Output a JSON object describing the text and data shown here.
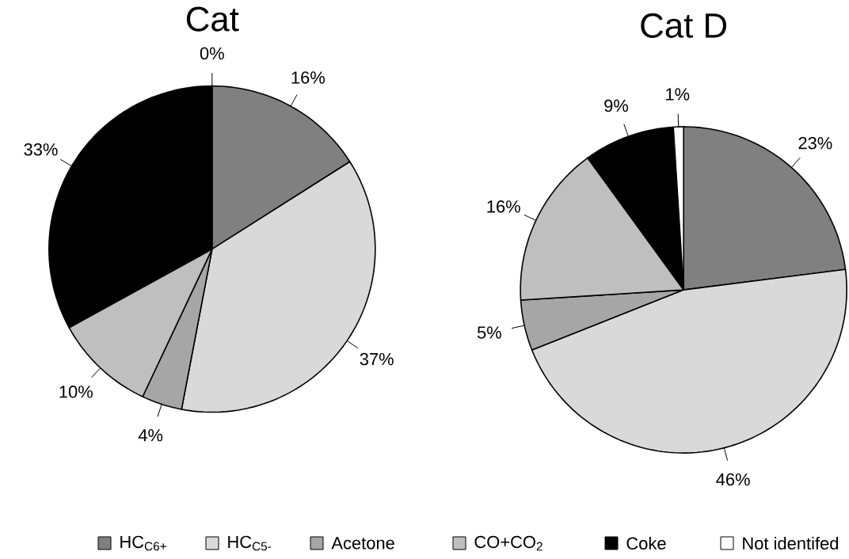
{
  "chart_data": [
    {
      "type": "pie",
      "title": "Cat",
      "categories": [
        "HC$_{C6+}$",
        "HC$_{C5-}$",
        "Acetone",
        "CO+CO$_{2}$",
        "Coke",
        "Not identifed"
      ],
      "values": [
        16,
        37,
        4,
        10,
        33,
        0
      ],
      "value_labels": [
        "16%",
        "37%",
        "4%",
        "10%",
        "33%",
        "0%"
      ],
      "colors": [
        "#808080",
        "#d9d9d9",
        "#a6a6a6",
        "#bfbfbf",
        "#000000",
        "#ffffff"
      ],
      "legend": "bottom"
    },
    {
      "type": "pie",
      "title": "Cat D",
      "categories": [
        null,
        null,
        null,
        null,
        null,
        null
      ],
      "values": [
        23,
        46,
        5,
        16,
        9,
        1
      ],
      "value_labels": [
        "23%",
        "46%",
        "5%",
        "16%",
        "9%",
        "1%"
      ],
      "colors": [
        "#808080",
        "#d9d9d9",
        "#a6a6a6",
        "#bfbfbf",
        "#000000",
        "#ffffff"
      ]
    }
  ]
}
